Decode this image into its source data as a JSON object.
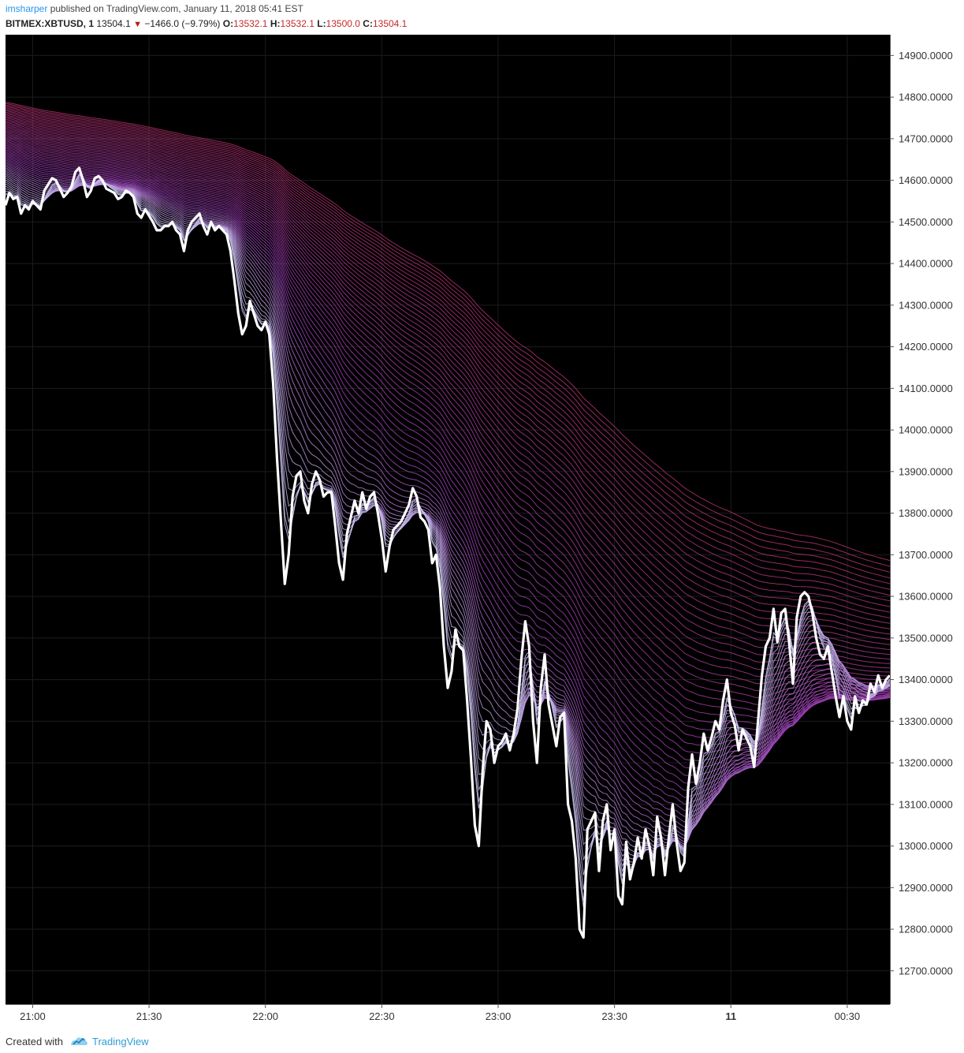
{
  "header": {
    "author": "imsharper",
    "published_text": " published on TradingView.com, January 11, 2018 05:41 EST",
    "symbol": "BITMEX:XBTUSD, 1",
    "last": "13504.1",
    "change": "−1466.0 (−9.79%)",
    "o_label": "O:",
    "o_value": "13532.1",
    "h_label": "H:",
    "h_value": "13532.1",
    "l_label": "L:",
    "l_value": "13500.0",
    "c_label": "C:",
    "c_value": "13504.1",
    "down_arrow_icon": "down-triangle"
  },
  "footer": {
    "created_with": "Created with",
    "brand": "TradingView",
    "logo_icon": "tradingview-logo"
  },
  "colors": {
    "background": "#000000",
    "price_line": "#ffffff",
    "ribbon_fast": "#c8c8f0",
    "ribbon_mid": "#9b3fb8",
    "ribbon_slow": "#b0306a",
    "axis_bg": "#ffffff",
    "axis_text": "#333333",
    "grid": "#1c1c1c"
  },
  "chart_data": {
    "type": "line",
    "title": "",
    "xlabel": "",
    "ylabel": "",
    "ylim": [
      12620,
      14950
    ],
    "y_ticks": [
      "12700.0000",
      "12800.0000",
      "12900.0000",
      "13000.0000",
      "13100.0000",
      "13200.0000",
      "13300.0000",
      "13400.0000",
      "13500.0000",
      "13600.0000",
      "13700.0000",
      "13800.0000",
      "13900.0000",
      "14000.0000",
      "14100.0000",
      "14200.0000",
      "14300.0000",
      "14400.0000",
      "14500.0000",
      "14600.0000",
      "14700.0000",
      "14800.0000",
      "14900.0000"
    ],
    "x_ticks": [
      {
        "label": "21:00",
        "minute": 7,
        "bold": false
      },
      {
        "label": "21:30",
        "minute": 37,
        "bold": false
      },
      {
        "label": "22:00",
        "minute": 67,
        "bold": false
      },
      {
        "label": "22:30",
        "minute": 97,
        "bold": false
      },
      {
        "label": "23:00",
        "minute": 127,
        "bold": false
      },
      {
        "label": "23:30",
        "minute": 157,
        "bold": false
      },
      {
        "label": "11",
        "minute": 187,
        "bold": true
      },
      {
        "label": "00:30",
        "minute": 217,
        "bold": false
      }
    ],
    "x_range_minutes": [
      0,
      228
    ],
    "grid": true,
    "ribbon": {
      "description_count": 60,
      "start_top": 14790,
      "start_bottom": 14590,
      "end_top": 13470,
      "end_bottom": 13210
    },
    "series": [
      {
        "values": [
          14540,
          14570,
          14555,
          14560,
          14520,
          14540,
          14530,
          14550,
          14540,
          14530,
          14575,
          14590,
          14605,
          14600,
          14580,
          14560,
          14570,
          14585,
          14620,
          14630,
          14600,
          14560,
          14575,
          14605,
          14610,
          14600,
          14580,
          14575,
          14570,
          14555,
          14560,
          14575,
          14570,
          14560,
          14520,
          14510,
          14530,
          14515,
          14500,
          14480,
          14480,
          14490,
          14490,
          14500,
          14480,
          14470,
          14430,
          14480,
          14500,
          14510,
          14520,
          14490,
          14470,
          14500,
          14480,
          14490,
          14480,
          14470,
          14430,
          14360,
          14280,
          14230,
          14250,
          14310,
          14280,
          14250,
          14240,
          14260,
          14230,
          14110,
          13930,
          13780,
          13630,
          13700,
          13840,
          13890,
          13900,
          13830,
          13800,
          13870,
          13900,
          13880,
          13840,
          13850,
          13850,
          13770,
          13680,
          13640,
          13750,
          13790,
          13830,
          13800,
          13850,
          13810,
          13840,
          13850,
          13800,
          13740,
          13660,
          13720,
          13760,
          13770,
          13780,
          13800,
          13820,
          13860,
          13840,
          13790,
          13780,
          13760,
          13680,
          13700,
          13620,
          13480,
          13380,
          13420,
          13520,
          13480,
          13470,
          13350,
          13210,
          13050,
          13000,
          13180,
          13300,
          13280,
          13200,
          13240,
          13250,
          13270,
          13230,
          13270,
          13330,
          13450,
          13540,
          13480,
          13300,
          13200,
          13380,
          13460,
          13340,
          13290,
          13240,
          13310,
          13320,
          13100,
          13060,
          12970,
          12800,
          12780,
          13040,
          13060,
          13080,
          12940,
          13060,
          13100,
          12990,
          13040,
          12880,
          12860,
          13010,
          12920,
          12960,
          13020,
          12970,
          13040,
          13000,
          12930,
          13070,
          13020,
          12930,
          13020,
          13100,
          13010,
          12940,
          12960,
          13140,
          13220,
          13150,
          13200,
          13270,
          13230,
          13260,
          13300,
          13280,
          13350,
          13400,
          13320,
          13290,
          13230,
          13280,
          13260,
          13240,
          13190,
          13300,
          13410,
          13480,
          13500,
          13570,
          13490,
          13560,
          13570,
          13490,
          13390,
          13550,
          13600,
          13610,
          13600,
          13560,
          13500,
          13460,
          13450,
          13480,
          13420,
          13360,
          13310,
          13360,
          13300,
          13280,
          13360,
          13320,
          13350,
          13340,
          13390,
          13370,
          13410,
          13380,
          13400,
          13410
        ]
      }
    ]
  }
}
